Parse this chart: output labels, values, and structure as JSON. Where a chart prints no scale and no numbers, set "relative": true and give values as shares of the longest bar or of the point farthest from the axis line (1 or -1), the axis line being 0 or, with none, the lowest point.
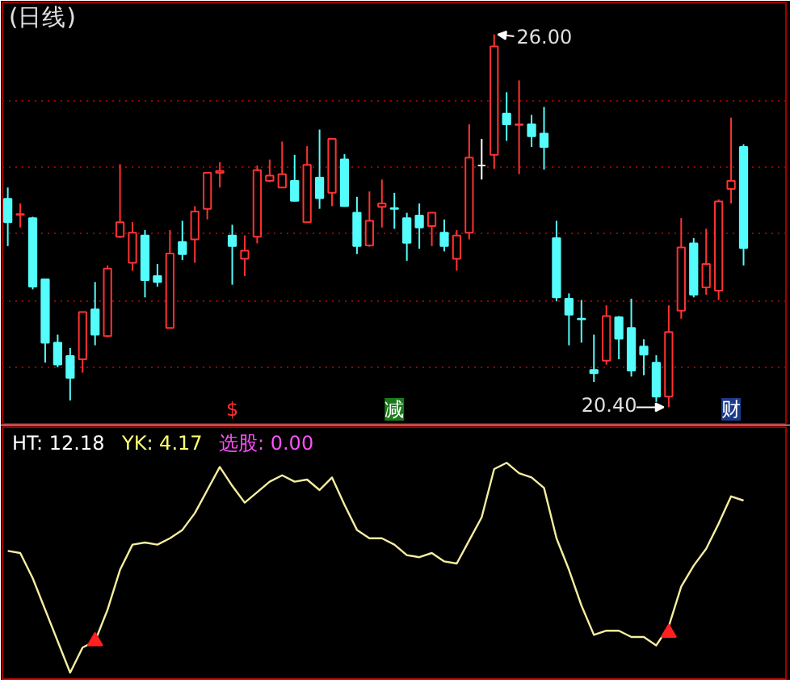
{
  "chart_data": [
    {
      "type": "candlestick",
      "title": "(日线)",
      "categories": [
        null,
        null,
        null,
        null,
        null,
        null,
        null,
        null,
        null,
        null,
        null,
        null,
        null,
        null,
        null,
        null,
        null,
        null,
        null,
        null,
        null,
        null,
        null,
        null,
        null,
        null,
        null,
        null,
        null,
        null,
        null,
        null,
        null,
        null,
        null,
        null,
        null,
        null,
        null,
        null,
        null,
        null,
        null,
        null,
        null,
        null,
        null,
        null,
        null,
        null,
        null,
        null,
        null,
        null,
        null,
        null,
        null,
        null,
        null,
        null
      ],
      "ohlc": [
        [
          23.53,
          23.7,
          22.82,
          23.18
        ],
        [
          23.29,
          23.46,
          23.1,
          23.3
        ],
        [
          23.24,
          23.26,
          22.17,
          22.21
        ],
        [
          22.32,
          22.32,
          21.07,
          21.37
        ],
        [
          21.37,
          21.49,
          21.0,
          21.04
        ],
        [
          21.17,
          21.29,
          20.5,
          20.84
        ],
        [
          21.12,
          21.83,
          20.92,
          21.83
        ],
        [
          21.87,
          22.28,
          21.33,
          21.49
        ],
        [
          21.47,
          22.53,
          21.45,
          22.48
        ],
        [
          22.96,
          24.05,
          22.94,
          23.18
        ],
        [
          22.57,
          23.18,
          22.45,
          23.02
        ],
        [
          22.98,
          23.06,
          22.05,
          22.31
        ],
        [
          22.37,
          22.55,
          22.21,
          22.28
        ],
        [
          21.59,
          23.06,
          21.58,
          22.71
        ],
        [
          22.88,
          23.2,
          22.61,
          22.7
        ],
        [
          22.92,
          23.42,
          22.57,
          23.34
        ],
        [
          23.38,
          23.93,
          23.22,
          23.92
        ],
        [
          23.92,
          24.08,
          23.7,
          23.95
        ],
        [
          22.98,
          23.14,
          22.24,
          22.82
        ],
        [
          22.63,
          22.98,
          22.37,
          22.75
        ],
        [
          22.96,
          24.03,
          22.86,
          23.96
        ],
        [
          23.8,
          24.12,
          23.78,
          23.88
        ],
        [
          23.7,
          24.39,
          23.69,
          23.9
        ],
        [
          23.8,
          24.19,
          23.49,
          23.5
        ],
        [
          23.18,
          24.32,
          23.17,
          24.04
        ],
        [
          23.85,
          24.57,
          23.38,
          23.54
        ],
        [
          23.62,
          24.43,
          23.42,
          24.43
        ],
        [
          24.12,
          24.2,
          23.41,
          23.42
        ],
        [
          23.32,
          23.56,
          22.7,
          22.82
        ],
        [
          22.83,
          23.64,
          22.81,
          23.2
        ],
        [
          23.41,
          23.82,
          23.1,
          23.46
        ],
        [
          23.39,
          23.62,
          23.08,
          23.38
        ],
        [
          23.24,
          23.32,
          22.6,
          22.87
        ],
        [
          23.28,
          23.46,
          22.78,
          23.1
        ],
        [
          23.12,
          23.32,
          22.82,
          23.32
        ],
        [
          23.02,
          23.22,
          22.74,
          22.82
        ],
        [
          22.63,
          23.06,
          22.45,
          22.98
        ],
        [
          23.02,
          24.65,
          22.92,
          24.15
        ],
        [
          24.03,
          24.43,
          23.82,
          24.03
        ],
        [
          24.19,
          26.0,
          23.98,
          25.82
        ],
        [
          24.81,
          25.13,
          24.4,
          24.65
        ],
        [
          24.64,
          25.31,
          23.9,
          24.65
        ],
        [
          24.65,
          24.79,
          24.31,
          24.47
        ],
        [
          24.51,
          24.91,
          23.97,
          24.31
        ],
        [
          22.94,
          23.2,
          21.99,
          22.05
        ],
        [
          22.03,
          22.11,
          21.33,
          21.79
        ],
        [
          21.73,
          22.01,
          21.37,
          21.72
        ],
        [
          20.96,
          21.49,
          20.78,
          20.91
        ],
        [
          21.1,
          21.93,
          21.04,
          21.77
        ],
        [
          21.75,
          21.77,
          21.12,
          21.43
        ],
        [
          21.59,
          22.03,
          20.86,
          20.95
        ],
        [
          21.31,
          21.42,
          20.88,
          21.19
        ],
        [
          21.07,
          21.18,
          20.48,
          20.56
        ],
        [
          20.56,
          21.93,
          20.4,
          21.53
        ],
        [
          21.85,
          23.24,
          21.73,
          22.8
        ],
        [
          22.86,
          22.94,
          22.05,
          22.09
        ],
        [
          22.2,
          23.08,
          22.09,
          22.55
        ],
        [
          22.15,
          23.52,
          22.01,
          23.49
        ],
        [
          23.68,
          24.75,
          23.46,
          23.8
        ],
        [
          24.31,
          24.35,
          22.53,
          22.79
        ]
      ],
      "colors": [
        "#54fcfc",
        "#ff3232",
        "#54fcfc",
        "#54fcfc",
        "#54fcfc",
        "#54fcfc",
        "#ff3232",
        "#54fcfc",
        "#ff3232",
        "#ff3232",
        "#ff3232",
        "#54fcfc",
        "#54fcfc",
        "#ff3232",
        "#54fcfc",
        "#ff3232",
        "#ff3232",
        "#ff3232",
        "#54fcfc",
        "#ff3232",
        "#ff3232",
        "#ff3232",
        "#ff3232",
        "#54fcfc",
        "#ff3232",
        "#54fcfc",
        "#ff3232",
        "#54fcfc",
        "#54fcfc",
        "#ff3232",
        "#ff3232",
        "#54fcfc",
        "#54fcfc",
        "#54fcfc",
        "#ff3232",
        "#54fcfc",
        "#ff3232",
        "#ff3232",
        "#ffffff",
        "#ff3232",
        "#54fcfc",
        "#ff3232",
        "#54fcfc",
        "#54fcfc",
        "#54fcfc",
        "#54fcfc",
        "#54fcfc",
        "#54fcfc",
        "#ff3232",
        "#54fcfc",
        "#54fcfc",
        "#54fcfc",
        "#54fcfc",
        "#ff3232",
        "#ff3232",
        "#54fcfc",
        "#ff3232",
        "#ff3232",
        "#ff3232",
        "#54fcfc"
      ],
      "ylim": [
        20.15,
        26.48
      ],
      "yticks": [
        {
          "value": 21,
          "label": null
        },
        {
          "value": 22,
          "label": null
        },
        {
          "value": 23,
          "label": null
        },
        {
          "value": 24,
          "label": null
        },
        {
          "value": 25,
          "label": null
        }
      ],
      "grid": "y",
      "tick_labels": false,
      "annotations": [
        "$",
        "减",
        "财",
        "26.00",
        "20.40"
      ]
    },
    {
      "type": "line",
      "relative": true,
      "tick_labels": false,
      "categories": [
        null,
        null,
        null,
        null,
        null,
        null,
        null,
        null,
        null,
        null,
        null,
        null,
        null,
        null,
        null,
        null,
        null,
        null,
        null,
        null,
        null,
        null,
        null,
        null,
        null,
        null,
        null,
        null,
        null,
        null,
        null,
        null,
        null,
        null,
        null,
        null,
        null,
        null,
        null,
        null,
        null,
        null,
        null,
        null,
        null,
        null,
        null,
        null,
        null,
        null,
        null,
        null,
        null,
        null,
        null,
        null,
        null,
        null,
        null,
        null
      ],
      "series": [
        {
          "color": "#f5eea0",
          "values": [
            0.58,
            0.57,
            0.45,
            0.3,
            0.15,
            0,
            0.12,
            0.15,
            0.3,
            0.49,
            0.61,
            0.62,
            0.61,
            0.64,
            0.68,
            0.76,
            0.87,
            0.98,
            0.89,
            0.81,
            0.86,
            0.91,
            0.94,
            0.91,
            0.92,
            0.87,
            0.93,
            0.8,
            0.68,
            0.64,
            0.64,
            0.61,
            0.56,
            0.55,
            0.57,
            0.53,
            0.52,
            0.63,
            0.74,
            0.97,
            1,
            0.95,
            0.93,
            0.88,
            0.64,
            0.49,
            0.32,
            0.18,
            0.2,
            0.2,
            0.17,
            0.17,
            0.13,
            0.22,
            0.41,
            0.51,
            0.59,
            0.71,
            0.84,
            0.82
          ]
        },
        {
          "type": "scatter",
          "marker": "triangle",
          "color": "#ff2020",
          "values": [
            null,
            null,
            null,
            null,
            null,
            null,
            null,
            0.15,
            null,
            null,
            null,
            null,
            null,
            null,
            null,
            null,
            null,
            null,
            null,
            null,
            null,
            null,
            null,
            null,
            null,
            null,
            null,
            null,
            null,
            null,
            null,
            null,
            null,
            null,
            null,
            null,
            null,
            null,
            null,
            null,
            null,
            null,
            null,
            null,
            null,
            null,
            null,
            null,
            null,
            null,
            null,
            null,
            null,
            0.19,
            null,
            null,
            null,
            null,
            null,
            null
          ]
        }
      ],
      "annotations": [
        "HT: 12.18",
        "YK: 4.17",
        "选股: 0.00"
      ]
    }
  ]
}
